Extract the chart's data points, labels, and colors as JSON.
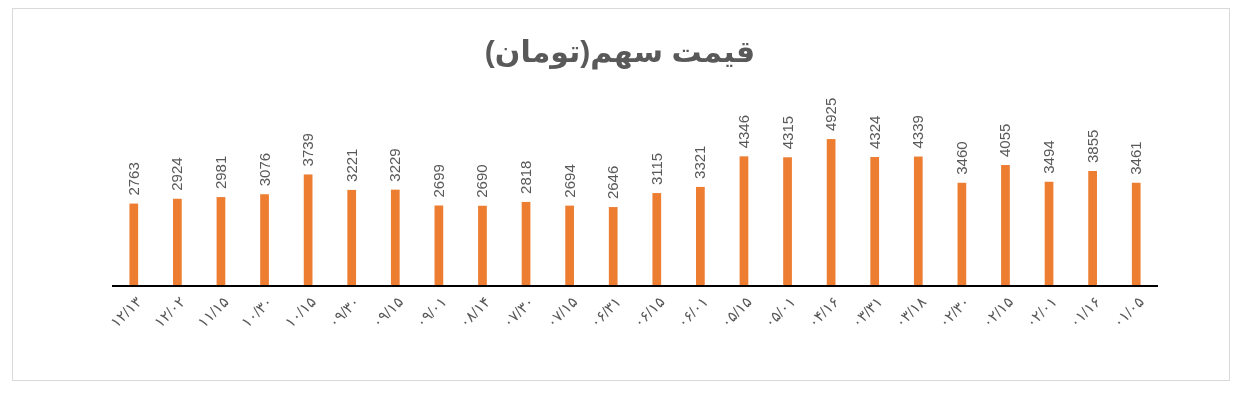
{
  "chart_data": {
    "type": "bar",
    "title": "قیمت سهم(تومان)",
    "categories": [
      "۱۲/۱۳",
      "۱۲/۰۲",
      "۱۱/۱۵",
      "۱۰/۳۰",
      "۱۰/۱۵",
      "۰۹/۳۰",
      "۰۹/۱۵",
      "۰۹/۰۱",
      "۰۸/۱۴",
      "۰۷/۳۰",
      "۰۷/۱۵",
      "۰۶/۳۱",
      "۰۶/۱۵",
      "۰۶/۰۱",
      "۰۵/۱۵",
      "۰۵/۰۱",
      "۰۴/۱۶",
      "۰۳/۳۱",
      "۰۳/۱۸",
      "۰۲/۳۰",
      "۰۲/۱۵",
      "۰۲/۰۱",
      "۰۱/۱۶",
      "۰۱/۰۵"
    ],
    "values": [
      2763,
      2924,
      2981,
      3076,
      3739,
      3221,
      3229,
      2699,
      2690,
      2818,
      2694,
      2646,
      3115,
      3321,
      4346,
      4315,
      4925,
      4324,
      4339,
      3460,
      4055,
      3494,
      3855,
      3461
    ],
    "color": "#ed7d31",
    "data_labels": true
  }
}
